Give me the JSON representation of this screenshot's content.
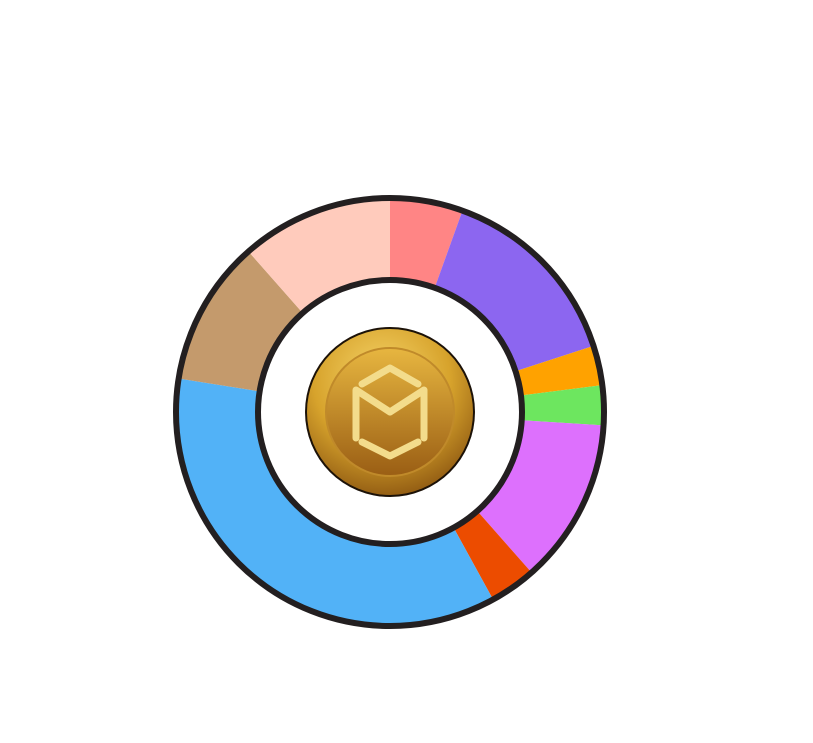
{
  "chart_data": {
    "type": "pie",
    "variant": "donut",
    "title": "",
    "start": "top",
    "direction": "clockwise",
    "legend": "none",
    "center_icon": "gold-coin-logo-icon",
    "slices": [
      {
        "value": 5.5,
        "color": "#ff8585"
      },
      {
        "value": 14.5,
        "color": "#8c66f0"
      },
      {
        "value": 3.0,
        "color": "#ffa200"
      },
      {
        "value": 3.0,
        "color": "#6de65f"
      },
      {
        "value": 12.5,
        "color": "#dd70fd"
      },
      {
        "value": 3.5,
        "color": "#ec4c00"
      },
      {
        "value": 35.5,
        "color": "#52b2f7"
      },
      {
        "value": 11.0,
        "color": "#c49a6c"
      },
      {
        "value": 11.5,
        "color": "#ffcbbc"
      }
    ],
    "colors": {
      "outline": "#231f20",
      "coin_light": "#f6d56a",
      "coin_mid": "#d7a32c",
      "coin_dark": "#8a5410",
      "coin_emblem": "#f3dc8c"
    }
  }
}
